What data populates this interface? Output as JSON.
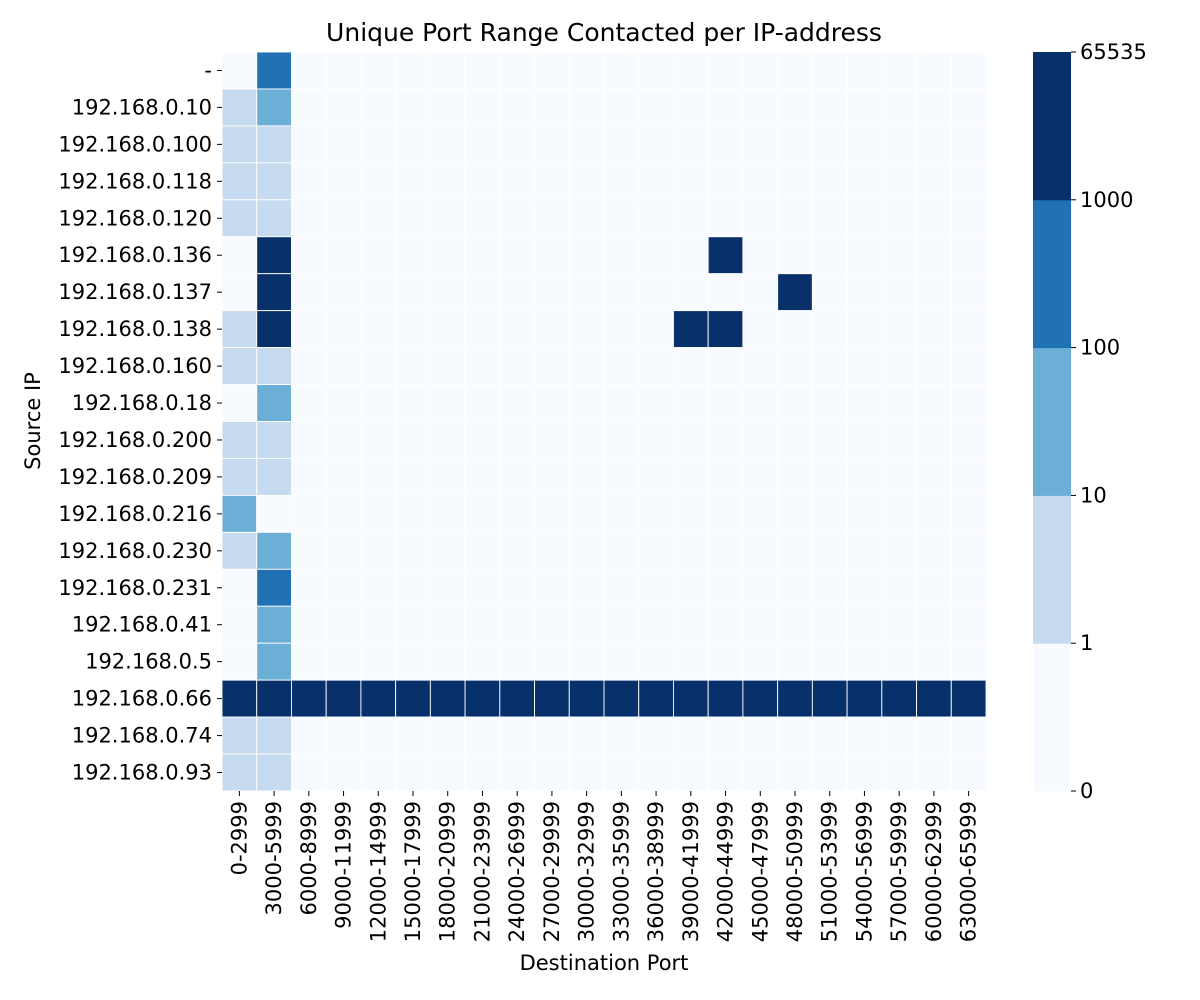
{
  "chart_data": {
    "type": "heatmap",
    "title": "Unique Port Range Contacted per IP-address",
    "xlabel": "Destination Port",
    "ylabel": "Source IP",
    "x_categories": [
      "0-2999",
      "3000-5999",
      "6000-8999",
      "9000-11999",
      "12000-14999",
      "15000-17999",
      "18000-20999",
      "21000-23999",
      "24000-26999",
      "27000-29999",
      "30000-32999",
      "33000-35999",
      "36000-38999",
      "39000-41999",
      "42000-44999",
      "45000-47999",
      "48000-50999",
      "51000-53999",
      "54000-56999",
      "57000-59999",
      "60000-62999",
      "63000-65999"
    ],
    "y_categories": [
      "-",
      "192.168.0.10",
      "192.168.0.100",
      "192.168.0.118",
      "192.168.0.120",
      "192.168.0.136",
      "192.168.0.137",
      "192.168.0.138",
      "192.168.0.160",
      "192.168.0.18",
      "192.168.0.200",
      "192.168.0.209",
      "192.168.0.216",
      "192.168.0.230",
      "192.168.0.231",
      "192.168.0.41",
      "192.168.0.5",
      "192.168.0.66",
      "192.168.0.74",
      "192.168.0.93"
    ],
    "value_bins": [
      0,
      1,
      10,
      100,
      1000,
      65535
    ],
    "bin_colors": [
      "#f7fbff",
      "#c6dbef",
      "#6baed6",
      "#2171b5",
      "#08306b"
    ],
    "colorbar_ticks": [
      "0",
      "1",
      "10",
      "100",
      "1000",
      "65535"
    ],
    "cell_note": "values are bin indices: 0 = [0,1), 1 = [1,10), 2 = [10,100), 3 = [100,1000), 4 = [1000,65535]",
    "bins": [
      [
        0,
        3,
        0,
        0,
        0,
        0,
        0,
        0,
        0,
        0,
        0,
        0,
        0,
        0,
        0,
        0,
        0,
        0,
        0,
        0,
        0,
        0
      ],
      [
        1,
        2,
        0,
        0,
        0,
        0,
        0,
        0,
        0,
        0,
        0,
        0,
        0,
        0,
        0,
        0,
        0,
        0,
        0,
        0,
        0,
        0
      ],
      [
        1,
        1,
        0,
        0,
        0,
        0,
        0,
        0,
        0,
        0,
        0,
        0,
        0,
        0,
        0,
        0,
        0,
        0,
        0,
        0,
        0,
        0
      ],
      [
        1,
        1,
        0,
        0,
        0,
        0,
        0,
        0,
        0,
        0,
        0,
        0,
        0,
        0,
        0,
        0,
        0,
        0,
        0,
        0,
        0,
        0
      ],
      [
        1,
        1,
        0,
        0,
        0,
        0,
        0,
        0,
        0,
        0,
        0,
        0,
        0,
        0,
        0,
        0,
        0,
        0,
        0,
        0,
        0,
        0
      ],
      [
        0,
        4,
        0,
        0,
        0,
        0,
        0,
        0,
        0,
        0,
        0,
        0,
        0,
        0,
        4,
        0,
        0,
        0,
        0,
        0,
        0,
        0
      ],
      [
        0,
        4,
        0,
        0,
        0,
        0,
        0,
        0,
        0,
        0,
        0,
        0,
        0,
        0,
        0,
        0,
        4,
        0,
        0,
        0,
        0,
        0
      ],
      [
        1,
        4,
        0,
        0,
        0,
        0,
        0,
        0,
        0,
        0,
        0,
        0,
        0,
        4,
        4,
        0,
        0,
        0,
        0,
        0,
        0,
        0
      ],
      [
        1,
        1,
        0,
        0,
        0,
        0,
        0,
        0,
        0,
        0,
        0,
        0,
        0,
        0,
        0,
        0,
        0,
        0,
        0,
        0,
        0,
        0
      ],
      [
        0,
        2,
        0,
        0,
        0,
        0,
        0,
        0,
        0,
        0,
        0,
        0,
        0,
        0,
        0,
        0,
        0,
        0,
        0,
        0,
        0,
        0
      ],
      [
        1,
        1,
        0,
        0,
        0,
        0,
        0,
        0,
        0,
        0,
        0,
        0,
        0,
        0,
        0,
        0,
        0,
        0,
        0,
        0,
        0,
        0
      ],
      [
        1,
        1,
        0,
        0,
        0,
        0,
        0,
        0,
        0,
        0,
        0,
        0,
        0,
        0,
        0,
        0,
        0,
        0,
        0,
        0,
        0,
        0
      ],
      [
        2,
        0,
        0,
        0,
        0,
        0,
        0,
        0,
        0,
        0,
        0,
        0,
        0,
        0,
        0,
        0,
        0,
        0,
        0,
        0,
        0,
        0
      ],
      [
        1,
        2,
        0,
        0,
        0,
        0,
        0,
        0,
        0,
        0,
        0,
        0,
        0,
        0,
        0,
        0,
        0,
        0,
        0,
        0,
        0,
        0
      ],
      [
        0,
        3,
        0,
        0,
        0,
        0,
        0,
        0,
        0,
        0,
        0,
        0,
        0,
        0,
        0,
        0,
        0,
        0,
        0,
        0,
        0,
        0
      ],
      [
        0,
        2,
        0,
        0,
        0,
        0,
        0,
        0,
        0,
        0,
        0,
        0,
        0,
        0,
        0,
        0,
        0,
        0,
        0,
        0,
        0,
        0
      ],
      [
        0,
        2,
        0,
        0,
        0,
        0,
        0,
        0,
        0,
        0,
        0,
        0,
        0,
        0,
        0,
        0,
        0,
        0,
        0,
        0,
        0,
        0
      ],
      [
        4,
        4,
        4,
        4,
        4,
        4,
        4,
        4,
        4,
        4,
        4,
        4,
        4,
        4,
        4,
        4,
        4,
        4,
        4,
        4,
        4,
        4
      ],
      [
        1,
        1,
        0,
        0,
        0,
        0,
        0,
        0,
        0,
        0,
        0,
        0,
        0,
        0,
        0,
        0,
        0,
        0,
        0,
        0,
        0,
        0
      ],
      [
        1,
        1,
        0,
        0,
        0,
        0,
        0,
        0,
        0,
        0,
        0,
        0,
        0,
        0,
        0,
        0,
        0,
        0,
        0,
        0,
        0,
        0
      ]
    ]
  }
}
